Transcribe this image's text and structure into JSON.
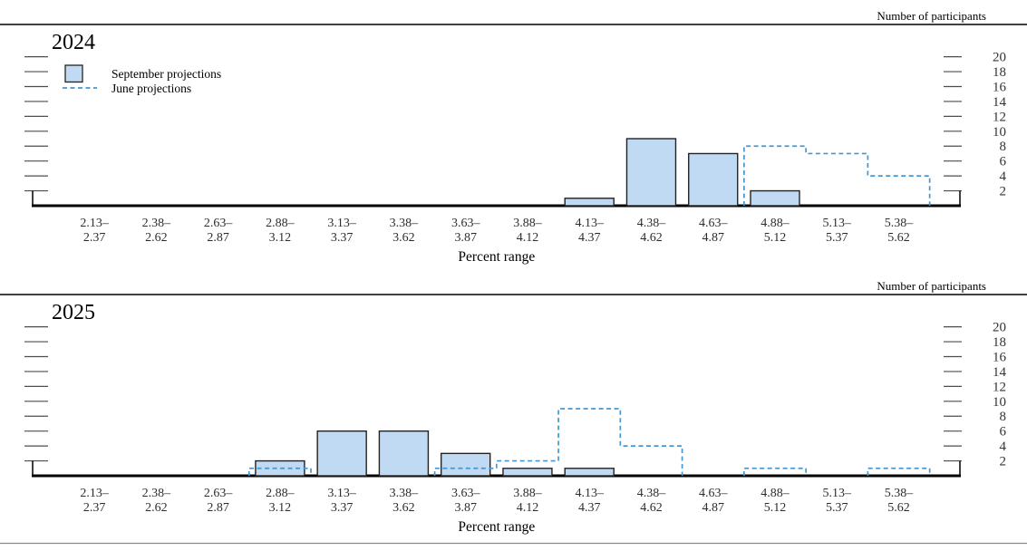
{
  "page": {
    "participants_label": "Number of participants",
    "percent_range_label": "Percent range",
    "legend": {
      "september": "September projections",
      "june": "June projections"
    }
  },
  "colors": {
    "bar_fill": "#c0daf3",
    "bar_border": "#222222",
    "june_line": "#4598d1",
    "axis": "#000000",
    "tick": "#4d4d4d",
    "tick_label": "#333333",
    "x_label": "#2d2d2d",
    "bottom_rule": "#888888"
  },
  "chart_data": [
    {
      "type": "bar",
      "title": "2024",
      "xlabel": "Percent range",
      "ylabel": "Number of participants",
      "categories": [
        "2.13–2.37",
        "2.38–2.62",
        "2.63–2.87",
        "2.88–3.12",
        "3.13–3.37",
        "3.38–3.62",
        "3.63–3.87",
        "3.88–4.12",
        "4.13–4.37",
        "4.38–4.62",
        "4.63–4.87",
        "4.88–5.12",
        "5.13–5.37",
        "5.38–5.62"
      ],
      "series": [
        {
          "name": "September projections",
          "style": "bar",
          "values": [
            0,
            0,
            0,
            0,
            0,
            0,
            0,
            0,
            1,
            9,
            7,
            2,
            0,
            0
          ]
        },
        {
          "name": "June projections",
          "style": "dashed_step",
          "values": [
            0,
            0,
            0,
            0,
            0,
            0,
            0,
            0,
            0,
            0,
            0,
            8,
            7,
            4
          ]
        }
      ],
      "yticks": [
        2,
        4,
        6,
        8,
        10,
        12,
        14,
        16,
        18,
        20
      ],
      "ylim": [
        0,
        21.5
      ],
      "grid": false,
      "legend_visible": true,
      "legend_position": "top-left"
    },
    {
      "type": "bar",
      "title": "2025",
      "xlabel": "Percent range",
      "ylabel": "Number of participants",
      "categories": [
        "2.13–2.37",
        "2.38–2.62",
        "2.63–2.87",
        "2.88–3.12",
        "3.13–3.37",
        "3.38–3.62",
        "3.63–3.87",
        "3.88–4.12",
        "4.13–4.37",
        "4.38–4.62",
        "4.63–4.87",
        "4.88–5.12",
        "5.13–5.37",
        "5.38–5.62"
      ],
      "series": [
        {
          "name": "September projections",
          "style": "bar",
          "values": [
            0,
            0,
            0,
            2,
            6,
            6,
            3,
            1,
            1,
            0,
            0,
            0,
            0,
            0
          ]
        },
        {
          "name": "June projections",
          "style": "dashed_step",
          "values": [
            0,
            0,
            0,
            1,
            0,
            0,
            1,
            2,
            9,
            4,
            0,
            1,
            0,
            1
          ]
        }
      ],
      "yticks": [
        2,
        4,
        6,
        8,
        10,
        12,
        14,
        16,
        18,
        20
      ],
      "ylim": [
        0,
        21.5
      ],
      "grid": false,
      "legend_visible": false
    }
  ]
}
